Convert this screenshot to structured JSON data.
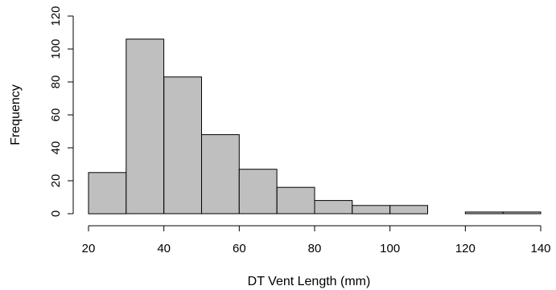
{
  "chart_data": {
    "type": "bar",
    "subtype": "histogram",
    "title": "",
    "xlabel": "DT Vent Length (mm)",
    "ylabel": "Frequency",
    "bins": [
      {
        "x0": 20,
        "x1": 30,
        "count": 25
      },
      {
        "x0": 30,
        "x1": 40,
        "count": 106
      },
      {
        "x0": 40,
        "x1": 50,
        "count": 83
      },
      {
        "x0": 50,
        "x1": 60,
        "count": 48
      },
      {
        "x0": 60,
        "x1": 70,
        "count": 27
      },
      {
        "x0": 70,
        "x1": 80,
        "count": 16
      },
      {
        "x0": 80,
        "x1": 90,
        "count": 8
      },
      {
        "x0": 90,
        "x1": 100,
        "count": 5
      },
      {
        "x0": 100,
        "x1": 110,
        "count": 5
      },
      {
        "x0": 110,
        "x1": 120,
        "count": 0
      },
      {
        "x0": 120,
        "x1": 130,
        "count": 1
      },
      {
        "x0": 130,
        "x1": 140,
        "count": 1
      }
    ],
    "xticks": [
      20,
      40,
      60,
      80,
      100,
      120,
      140
    ],
    "yticks": [
      0,
      20,
      40,
      60,
      80,
      100,
      120
    ],
    "xlim": [
      20,
      140
    ],
    "ylim": [
      0,
      120
    ],
    "grid": false,
    "bar_color": "#bfbfbf",
    "edge_color": "#000000"
  }
}
